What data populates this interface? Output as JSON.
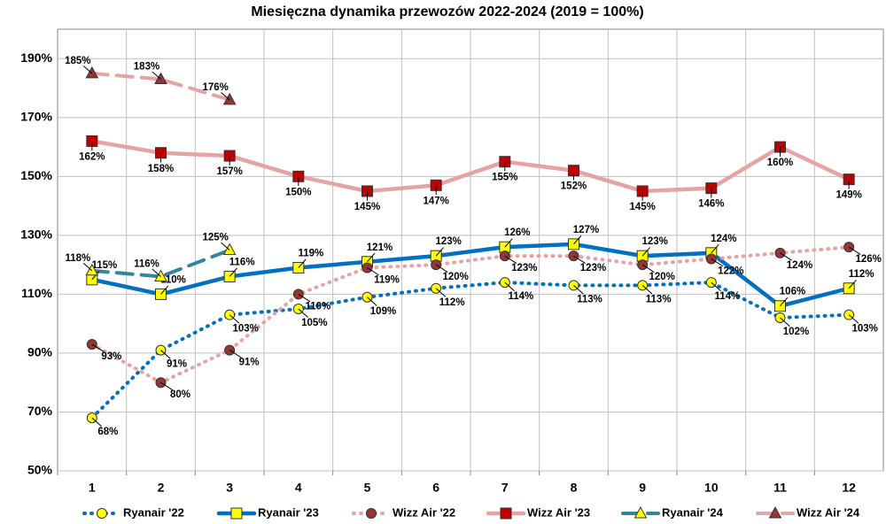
{
  "chart_data": {
    "type": "line",
    "title": "Miesięczna dynamika przewozów 2022-2024 (2019 = 100%)",
    "categories": [
      "1",
      "2",
      "3",
      "4",
      "5",
      "6",
      "7",
      "8",
      "9",
      "10",
      "11",
      "12"
    ],
    "ylim": [
      50,
      200
    ],
    "yticks": [
      {
        "value": 50,
        "label": "50%"
      },
      {
        "value": 70,
        "label": "70%"
      },
      {
        "value": 90,
        "label": "90%"
      },
      {
        "value": 110,
        "label": "110%"
      },
      {
        "value": 130,
        "label": "130%"
      },
      {
        "value": 150,
        "label": "150%"
      },
      {
        "value": 170,
        "label": "170%"
      },
      {
        "value": 190,
        "label": "190%"
      }
    ],
    "grid": true,
    "legend": "bottom",
    "series": [
      {
        "name": "Ryanair '22",
        "color": "#0070c0",
        "marker": "circle",
        "marker_color": "#ffff00",
        "dash": "dotted",
        "values": [
          68,
          91,
          103,
          105,
          109,
          112,
          114,
          113,
          113,
          114,
          102,
          103
        ],
        "value_labels": [
          "68%",
          "91%",
          "103%",
          "105%",
          "109%",
          "112%",
          "114%",
          "113%",
          "113%",
          "114%",
          "102%",
          "103%"
        ]
      },
      {
        "name": "Ryanair '23",
        "color": "#0070c0",
        "marker": "square",
        "marker_color": "#ffff00",
        "dash": "solid",
        "values": [
          115,
          110,
          116,
          119,
          121,
          123,
          126,
          127,
          123,
          124,
          106,
          112
        ],
        "value_labels": [
          "115%",
          "110%",
          "116%",
          "119%",
          "121%",
          "123%",
          "126%",
          "127%",
          "123%",
          "124%",
          "106%",
          "112%"
        ]
      },
      {
        "name": "Wizz Air '22",
        "color": "#e6a3a3",
        "marker": "circle",
        "marker_color": "#943634",
        "dash": "dotted",
        "values": [
          93,
          80,
          91,
          110,
          119,
          120,
          123,
          123,
          120,
          122,
          124,
          126
        ],
        "value_labels": [
          "93%",
          "80%",
          "91%",
          "110%",
          "119%",
          "120%",
          "123%",
          "123%",
          "120%",
          "122%",
          "124%",
          "126%"
        ]
      },
      {
        "name": "Wizz Air '23",
        "color": "#e6a3a3",
        "marker": "square",
        "marker_color": "#c00000",
        "dash": "solid",
        "values": [
          162,
          158,
          157,
          150,
          145,
          147,
          155,
          152,
          145,
          146,
          160,
          149
        ],
        "value_labels": [
          "162%",
          "158%",
          "157%",
          "150%",
          "145%",
          "147%",
          "155%",
          "152%",
          "145%",
          "146%",
          "160%",
          "149%"
        ]
      },
      {
        "name": "Ryanair '24",
        "color": "#31859c",
        "marker": "triangle",
        "marker_color": "#ffff00",
        "dash": "dashed",
        "values": [
          118,
          116,
          125,
          null,
          null,
          null,
          null,
          null,
          null,
          null,
          null,
          null
        ],
        "value_labels": [
          "118%",
          "116%",
          "125%",
          null,
          null,
          null,
          null,
          null,
          null,
          null,
          null,
          null
        ]
      },
      {
        "name": "Wizz Air '24",
        "color": "#e6a3a3",
        "marker": "triangle",
        "marker_color": "#943634",
        "dash": "dashed",
        "values": [
          185,
          183,
          176,
          null,
          null,
          null,
          null,
          null,
          null,
          null,
          null,
          null
        ],
        "value_labels": [
          "185%",
          "183%",
          "176%",
          null,
          null,
          null,
          null,
          null,
          null,
          null,
          null,
          null
        ]
      }
    ]
  }
}
